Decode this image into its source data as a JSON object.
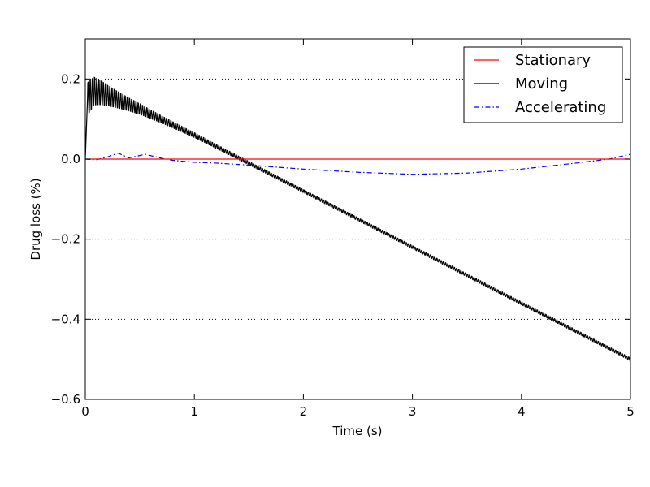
{
  "chart_data": {
    "type": "line",
    "title": "",
    "xlabel": "Time (s)",
    "ylabel": "Drug loss (%)",
    "xlim": [
      0,
      5
    ],
    "ylim": [
      -0.6,
      0.3
    ],
    "x_ticks": [
      0,
      1,
      2,
      3,
      4,
      5
    ],
    "x_tick_labels": [
      "0",
      "1",
      "2",
      "3",
      "4",
      "5"
    ],
    "y_ticks": [
      -0.6,
      -0.4,
      -0.2,
      0.0,
      0.2
    ],
    "y_tick_labels": [
      "−0.6",
      "−0.4",
      "−0.2",
      "0.0",
      "0.2"
    ],
    "grid": {
      "y": true,
      "x": false,
      "style": "dotted"
    },
    "legend_position": "top-right",
    "series": [
      {
        "name": "Stationary",
        "color": "#ff0000",
        "dash": "solid",
        "x": [
          0,
          5
        ],
        "y": [
          0,
          0
        ]
      },
      {
        "name": "Moving",
        "color": "#000000",
        "dash": "solid",
        "oscillation": {
          "frequency_hz": 50,
          "amplitude_decay": [
            0.045,
            0.004
          ]
        },
        "x": [
          0,
          0.02,
          0.08,
          0.15,
          0.5,
          1.0,
          1.5,
          2.0,
          2.5,
          3.0,
          3.5,
          4.0,
          4.5,
          5.0
        ],
        "y": [
          0.0,
          0.15,
          0.17,
          0.165,
          0.125,
          0.06,
          -0.01,
          -0.08,
          -0.15,
          -0.22,
          -0.29,
          -0.36,
          -0.43,
          -0.5
        ]
      },
      {
        "name": "Accelerating",
        "color": "#0000ff",
        "dash": "dashdot",
        "x": [
          0,
          0.1,
          0.2,
          0.3,
          0.4,
          0.55,
          0.7,
          0.8,
          1.0,
          1.2,
          1.5,
          2.0,
          2.5,
          3.0,
          3.5,
          4.0,
          4.5,
          4.8,
          5.0
        ],
        "y": [
          0.0,
          -0.002,
          0.005,
          0.015,
          0.003,
          0.012,
          0.002,
          -0.003,
          -0.008,
          -0.01,
          -0.015,
          -0.025,
          -0.033,
          -0.038,
          -0.035,
          -0.025,
          -0.01,
          0.0,
          0.012
        ]
      }
    ]
  }
}
